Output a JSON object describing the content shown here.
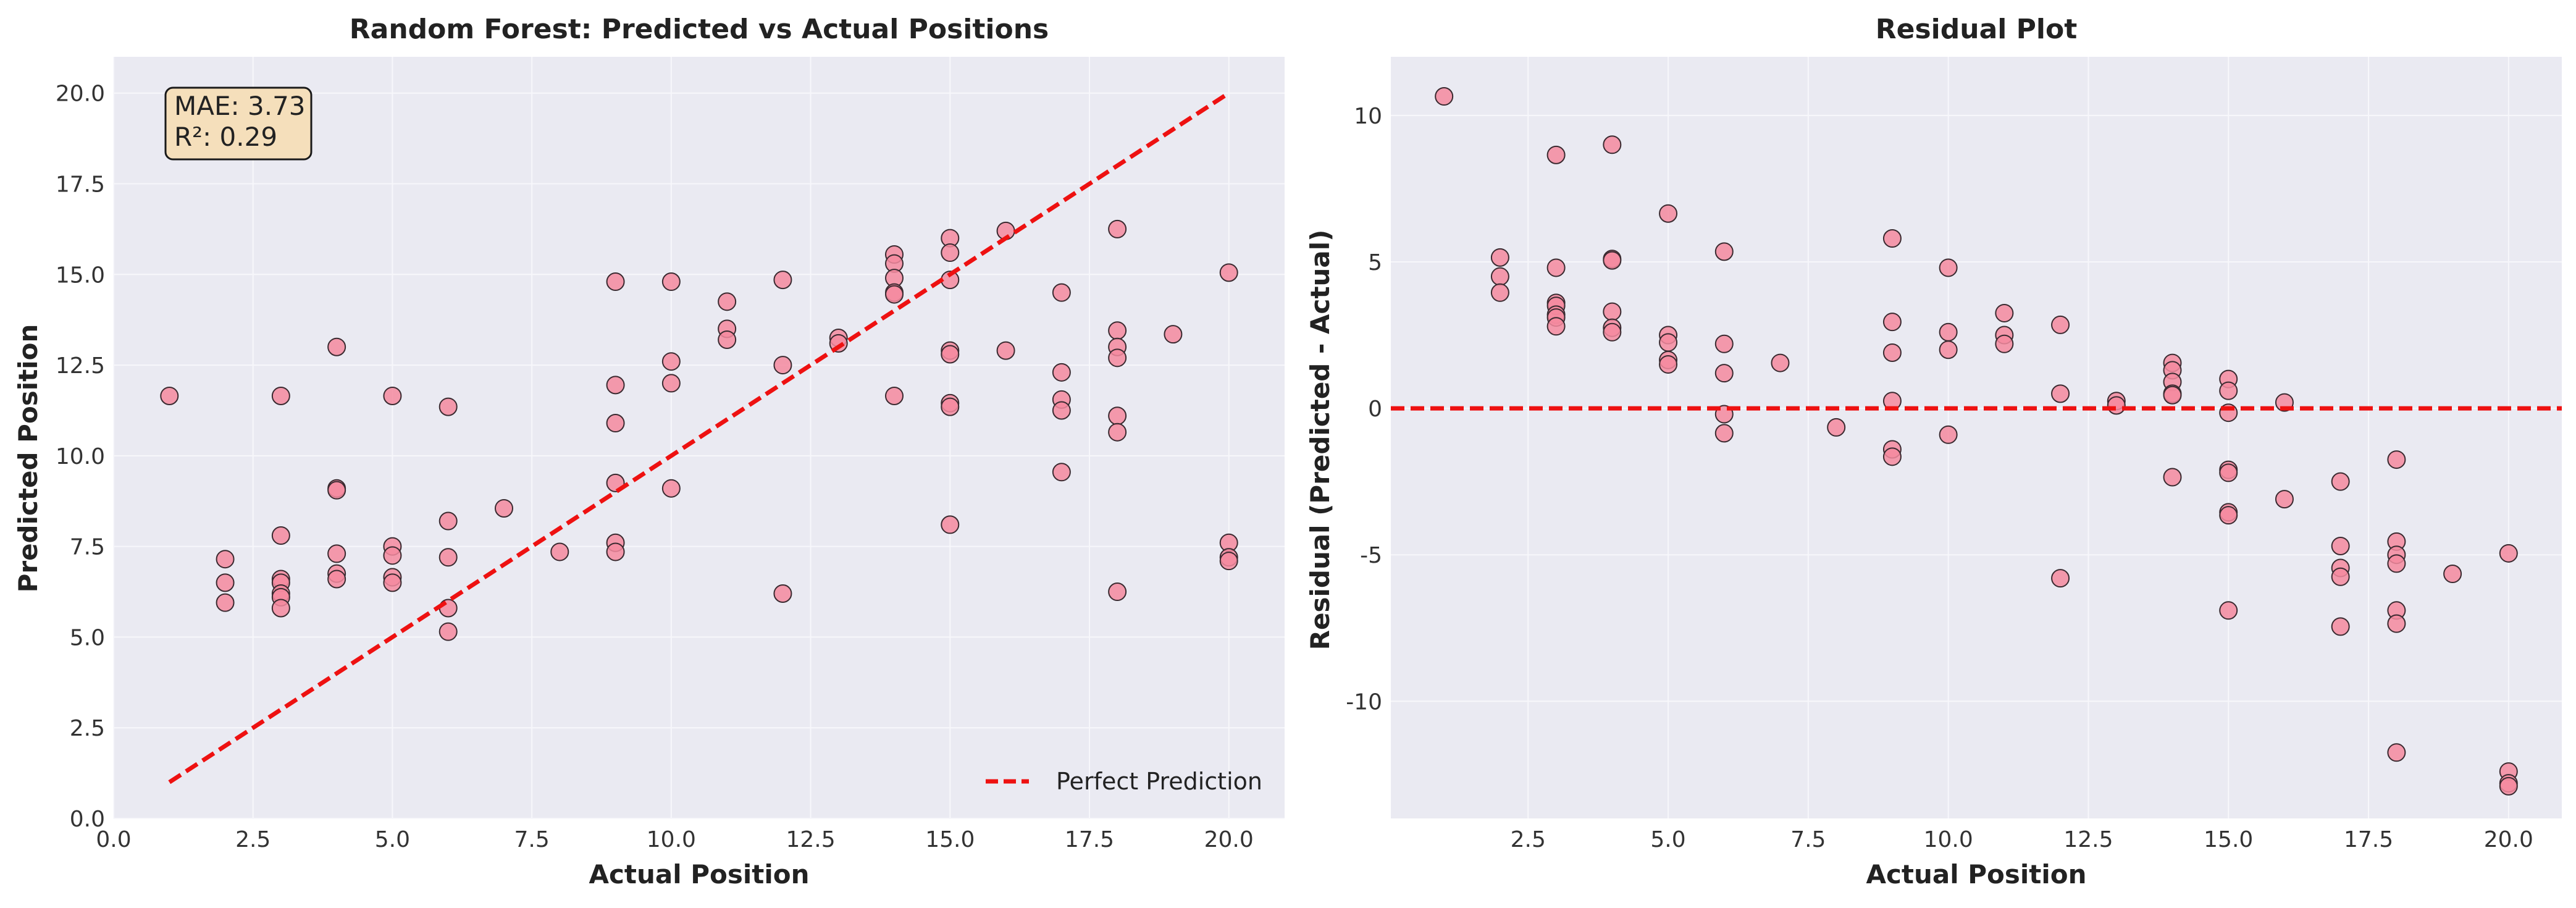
{
  "colors": {
    "plot_background": "#eaeaf2",
    "grid": "#f7f7fb",
    "point_fill": "#f4899f",
    "point_edge": "#3a2a30",
    "reference_line": "#ee1111",
    "stats_box_fill": "#f5dfbb",
    "stats_box_edge": "#1a1a1a"
  },
  "chart_data": [
    {
      "type": "scatter",
      "title": "Random Forest: Predicted vs Actual Positions",
      "xlabel": "Actual Position",
      "ylabel": "Predicted Position",
      "xlim": [
        0,
        21
      ],
      "ylim": [
        0,
        21
      ],
      "x_ticks": [
        0,
        2.5,
        5,
        7.5,
        10,
        12.5,
        15,
        17.5,
        20
      ],
      "x_tick_labels": [
        "0.0",
        "2.5",
        "5.0",
        "7.5",
        "10.0",
        "12.5",
        "15.0",
        "17.5",
        "20.0"
      ],
      "y_ticks": [
        0,
        2.5,
        5,
        7.5,
        10,
        12.5,
        15,
        17.5,
        20
      ],
      "y_tick_labels": [
        "0.0",
        "2.5",
        "5.0",
        "7.5",
        "10.0",
        "12.5",
        "15.0",
        "17.5",
        "20.0"
      ],
      "grid": true,
      "stats": {
        "mae": "MAE: 3.73",
        "r2": "R²: 0.29"
      },
      "legend": {
        "placement": "bottom-right",
        "entries": [
          "Perfect Prediction"
        ]
      },
      "reference_line": {
        "x": [
          1,
          20
        ],
        "y": [
          1,
          20
        ]
      },
      "points": [
        [
          1,
          11.65
        ],
        [
          2,
          7.15
        ],
        [
          2,
          6.5
        ],
        [
          2,
          5.95
        ],
        [
          3,
          11.65
        ],
        [
          3,
          7.8
        ],
        [
          3,
          6.6
        ],
        [
          3,
          6.5
        ],
        [
          3,
          6.2
        ],
        [
          3,
          6.1
        ],
        [
          3,
          5.8
        ],
        [
          4,
          13.0
        ],
        [
          4,
          9.1
        ],
        [
          4,
          9.05
        ],
        [
          4,
          7.3
        ],
        [
          4,
          6.75
        ],
        [
          4,
          6.6
        ],
        [
          5,
          11.65
        ],
        [
          5,
          7.5
        ],
        [
          5,
          7.25
        ],
        [
          5,
          6.65
        ],
        [
          5,
          6.5
        ],
        [
          6,
          11.35
        ],
        [
          6,
          8.2
        ],
        [
          6,
          7.2
        ],
        [
          6,
          5.8
        ],
        [
          6,
          5.15
        ],
        [
          7,
          8.55
        ],
        [
          8,
          7.35
        ],
        [
          9,
          14.8
        ],
        [
          9,
          11.95
        ],
        [
          9,
          10.9
        ],
        [
          9,
          9.25
        ],
        [
          9,
          7.6
        ],
        [
          9,
          7.35
        ],
        [
          10,
          14.8
        ],
        [
          10,
          12.6
        ],
        [
          10,
          12.0
        ],
        [
          10,
          9.1
        ],
        [
          11,
          14.25
        ],
        [
          11,
          13.5
        ],
        [
          11,
          13.2
        ],
        [
          12,
          14.85
        ],
        [
          12,
          12.5
        ],
        [
          12,
          6.2
        ],
        [
          13,
          13.25
        ],
        [
          13,
          13.1
        ],
        [
          14,
          15.55
        ],
        [
          14,
          15.3
        ],
        [
          14,
          14.9
        ],
        [
          14,
          14.5
        ],
        [
          14,
          14.45
        ],
        [
          14,
          11.65
        ],
        [
          15,
          16.0
        ],
        [
          15,
          15.6
        ],
        [
          15,
          14.85
        ],
        [
          15,
          12.9
        ],
        [
          15,
          12.8
        ],
        [
          15,
          11.45
        ],
        [
          15,
          11.35
        ],
        [
          15,
          8.1
        ],
        [
          16,
          16.2
        ],
        [
          16,
          12.9
        ],
        [
          17,
          14.5
        ],
        [
          17,
          12.3
        ],
        [
          17,
          11.55
        ],
        [
          17,
          11.25
        ],
        [
          17,
          9.55
        ],
        [
          18,
          16.25
        ],
        [
          18,
          13.45
        ],
        [
          18,
          13.0
        ],
        [
          18,
          12.7
        ],
        [
          18,
          11.1
        ],
        [
          18,
          10.65
        ],
        [
          18,
          6.25
        ],
        [
          19,
          13.35
        ],
        [
          20,
          15.05
        ],
        [
          20,
          7.6
        ],
        [
          20,
          7.2
        ],
        [
          20,
          7.1
        ]
      ]
    },
    {
      "type": "scatter",
      "title": "Residual Plot",
      "xlabel": "Actual Position",
      "ylabel": "Residual (Predicted - Actual)",
      "xlim": [
        0.05,
        20.95
      ],
      "ylim": [
        -14,
        12
      ],
      "x_ticks": [
        2.5,
        5,
        7.5,
        10,
        12.5,
        15,
        17.5,
        20
      ],
      "x_tick_labels": [
        "2.5",
        "5.0",
        "7.5",
        "10.0",
        "12.5",
        "15.0",
        "17.5",
        "20.0"
      ],
      "y_ticks": [
        -10,
        -5,
        0,
        5,
        10
      ],
      "y_tick_labels": [
        "-10",
        "-5",
        "0",
        "5",
        "10"
      ],
      "grid": true,
      "reference_line": {
        "y": 0
      },
      "points": [
        [
          1,
          10.65
        ],
        [
          2,
          5.15
        ],
        [
          2,
          4.5
        ],
        [
          2,
          3.95
        ],
        [
          3,
          8.65
        ],
        [
          3,
          4.8
        ],
        [
          3,
          3.6
        ],
        [
          3,
          3.5
        ],
        [
          3,
          3.2
        ],
        [
          3,
          3.1
        ],
        [
          3,
          2.8
        ],
        [
          4,
          9.0
        ],
        [
          4,
          5.1
        ],
        [
          4,
          5.05
        ],
        [
          4,
          3.3
        ],
        [
          4,
          2.75
        ],
        [
          4,
          2.6
        ],
        [
          5,
          6.65
        ],
        [
          5,
          2.5
        ],
        [
          5,
          2.25
        ],
        [
          5,
          1.65
        ],
        [
          5,
          1.5
        ],
        [
          6,
          5.35
        ],
        [
          6,
          2.2
        ],
        [
          6,
          1.2
        ],
        [
          6,
          -0.2
        ],
        [
          6,
          -0.85
        ],
        [
          7,
          1.55
        ],
        [
          8,
          -0.65
        ],
        [
          9,
          5.8
        ],
        [
          9,
          2.95
        ],
        [
          9,
          1.9
        ],
        [
          9,
          0.25
        ],
        [
          9,
          -1.4
        ],
        [
          9,
          -1.65
        ],
        [
          10,
          4.8
        ],
        [
          10,
          2.6
        ],
        [
          10,
          2.0
        ],
        [
          10,
          -0.9
        ],
        [
          11,
          3.25
        ],
        [
          11,
          2.5
        ],
        [
          11,
          2.2
        ],
        [
          12,
          2.85
        ],
        [
          12,
          0.5
        ],
        [
          12,
          -5.8
        ],
        [
          13,
          0.25
        ],
        [
          13,
          0.1
        ],
        [
          14,
          1.55
        ],
        [
          14,
          1.3
        ],
        [
          14,
          0.9
        ],
        [
          14,
          0.5
        ],
        [
          14,
          0.45
        ],
        [
          14,
          -2.35
        ],
        [
          15,
          1.0
        ],
        [
          15,
          0.6
        ],
        [
          15,
          -0.15
        ],
        [
          15,
          -2.1
        ],
        [
          15,
          -2.2
        ],
        [
          15,
          -3.55
        ],
        [
          15,
          -3.65
        ],
        [
          15,
          -6.9
        ],
        [
          16,
          0.2
        ],
        [
          16,
          -3.1
        ],
        [
          17,
          -2.5
        ],
        [
          17,
          -4.7
        ],
        [
          17,
          -5.45
        ],
        [
          17,
          -5.75
        ],
        [
          17,
          -7.45
        ],
        [
          18,
          -1.75
        ],
        [
          18,
          -4.55
        ],
        [
          18,
          -5.0
        ],
        [
          18,
          -5.3
        ],
        [
          18,
          -6.9
        ],
        [
          18,
          -7.35
        ],
        [
          18,
          -11.75
        ],
        [
          19,
          -5.65
        ],
        [
          20,
          -4.95
        ],
        [
          20,
          -12.4
        ],
        [
          20,
          -12.8
        ],
        [
          20,
          -12.9
        ]
      ]
    }
  ]
}
